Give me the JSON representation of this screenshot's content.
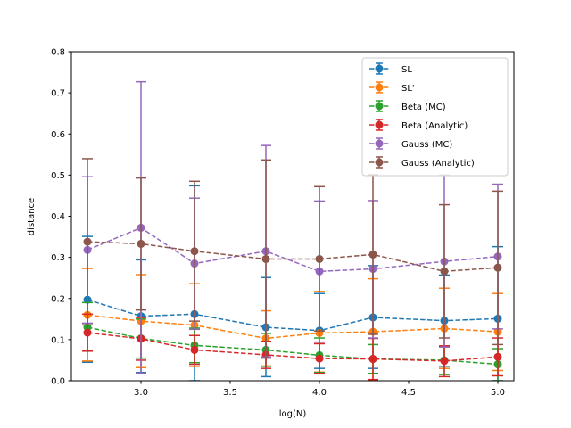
{
  "chart_data": {
    "type": "line",
    "title": "",
    "xlabel": "log(N)",
    "ylabel": "distance",
    "xlim": [
      2.61,
      5.09
    ],
    "ylim": [
      0.0,
      0.8
    ],
    "xticks": [
      3.0,
      3.5,
      4.0,
      4.5,
      5.0
    ],
    "xtick_labels": [
      "3.0",
      "3.5",
      "4.0",
      "4.5",
      "5.0"
    ],
    "yticks": [
      0.0,
      0.1,
      0.2,
      0.3,
      0.4,
      0.5,
      0.6,
      0.7,
      0.8
    ],
    "ytick_labels": [
      "0.0",
      "0.1",
      "0.2",
      "0.3",
      "0.4",
      "0.5",
      "0.6",
      "0.7",
      "0.8"
    ],
    "grid": false,
    "legend_position": "top-right",
    "x": [
      2.7,
      3.0,
      3.3,
      3.7,
      4.0,
      4.3,
      4.7,
      5.0
    ],
    "series": [
      {
        "name": "SL",
        "color": "#1f77b4",
        "values": [
          0.197,
          0.157,
          0.162,
          0.13,
          0.122,
          0.154,
          0.146,
          0.151
        ],
        "err_low": [
          0.045,
          0.02,
          0.0,
          0.01,
          0.03,
          0.03,
          0.035,
          0.0
        ],
        "err_high": [
          0.351,
          0.294,
          0.474,
          0.251,
          0.212,
          0.28,
          0.257,
          0.326
        ]
      },
      {
        "name": "SL'",
        "color": "#ff7f0e",
        "values": [
          0.16,
          0.145,
          0.135,
          0.103,
          0.116,
          0.119,
          0.127,
          0.119
        ],
        "err_low": [
          0.048,
          0.032,
          0.035,
          0.036,
          0.021,
          0.002,
          0.03,
          0.025
        ],
        "err_high": [
          0.273,
          0.258,
          0.236,
          0.17,
          0.217,
          0.248,
          0.225,
          0.212
        ]
      },
      {
        "name": "Beta (MC)",
        "color": "#2ca02c",
        "values": [
          0.13,
          0.103,
          0.086,
          0.075,
          0.062,
          0.053,
          0.05,
          0.04
        ],
        "err_low": [
          0.072,
          0.055,
          0.044,
          0.035,
          0.02,
          0.018,
          0.015,
          0.0
        ],
        "err_high": [
          0.19,
          0.15,
          0.128,
          0.115,
          0.104,
          0.088,
          0.083,
          0.078
        ]
      },
      {
        "name": "Beta (Analytic)",
        "color": "#d62728",
        "values": [
          0.117,
          0.102,
          0.075,
          0.063,
          0.054,
          0.053,
          0.048,
          0.058
        ],
        "err_low": [
          0.072,
          0.05,
          0.04,
          0.03,
          0.018,
          0.003,
          0.01,
          0.012
        ],
        "err_high": [
          0.162,
          0.154,
          0.11,
          0.096,
          0.09,
          0.103,
          0.085,
          0.104
        ]
      },
      {
        "name": "Gauss (MC)",
        "color": "#9467bd",
        "values": [
          0.318,
          0.372,
          0.285,
          0.315,
          0.266,
          0.272,
          0.29,
          0.302
        ],
        "err_low": [
          0.14,
          0.018,
          0.125,
          0.058,
          0.094,
          0.104,
          0.082,
          0.126
        ],
        "err_high": [
          0.496,
          0.727,
          0.444,
          0.572,
          0.437,
          0.438,
          0.5,
          0.478
        ]
      },
      {
        "name": "Gauss (Analytic)",
        "color": "#8c564b",
        "values": [
          0.338,
          0.333,
          0.315,
          0.296,
          0.296,
          0.307,
          0.266,
          0.275
        ],
        "err_low": [
          0.136,
          0.172,
          0.145,
          0.055,
          0.121,
          0.113,
          0.104,
          0.088
        ],
        "err_high": [
          0.54,
          0.493,
          0.485,
          0.537,
          0.472,
          0.501,
          0.428,
          0.461
        ]
      }
    ]
  }
}
